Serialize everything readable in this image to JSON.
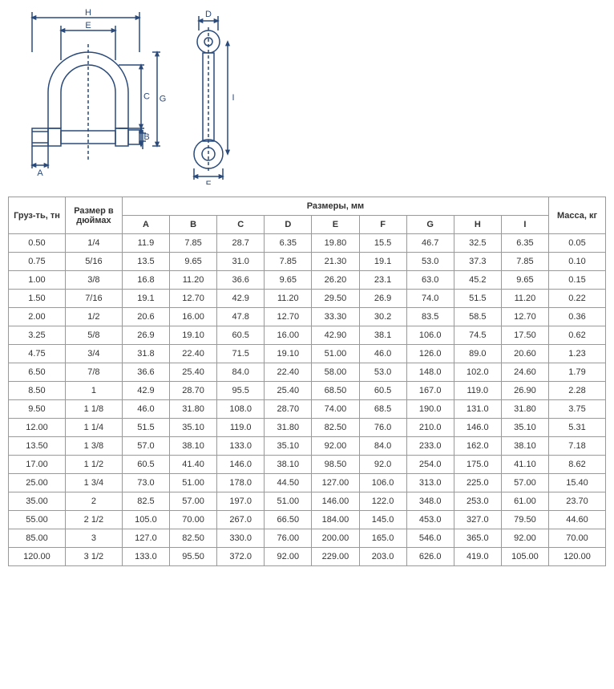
{
  "diagram": {
    "stroke_color": "#2a4a7a",
    "stroke_width": 1.5,
    "font_size": 11,
    "labels": [
      "A",
      "B",
      "C",
      "D",
      "E",
      "F",
      "G",
      "H",
      "I"
    ]
  },
  "table": {
    "header_load": "Груз-ть, тн",
    "header_inch": "Размер в дюймах",
    "header_dims_group": "Размеры, мм",
    "header_mass": "Масса, кг",
    "dim_cols": [
      "A",
      "B",
      "C",
      "D",
      "E",
      "F",
      "G",
      "H",
      "I"
    ],
    "rows": [
      {
        "load": "0.50",
        "inch": "1/4",
        "A": "11.9",
        "B": "7.85",
        "C": "28.7",
        "D": "6.35",
        "E": "19.80",
        "F": "15.5",
        "G": "46.7",
        "H": "32.5",
        "I": "6.35",
        "mass": "0.05"
      },
      {
        "load": "0.75",
        "inch": "5/16",
        "A": "13.5",
        "B": "9.65",
        "C": "31.0",
        "D": "7.85",
        "E": "21.30",
        "F": "19.1",
        "G": "53.0",
        "H": "37.3",
        "I": "7.85",
        "mass": "0.10"
      },
      {
        "load": "1.00",
        "inch": "3/8",
        "A": "16.8",
        "B": "11.20",
        "C": "36.6",
        "D": "9.65",
        "E": "26.20",
        "F": "23.1",
        "G": "63.0",
        "H": "45.2",
        "I": "9.65",
        "mass": "0.15"
      },
      {
        "load": "1.50",
        "inch": "7/16",
        "A": "19.1",
        "B": "12.70",
        "C": "42.9",
        "D": "11.20",
        "E": "29.50",
        "F": "26.9",
        "G": "74.0",
        "H": "51.5",
        "I": "11.20",
        "mass": "0.22"
      },
      {
        "load": "2.00",
        "inch": "1/2",
        "A": "20.6",
        "B": "16.00",
        "C": "47.8",
        "D": "12.70",
        "E": "33.30",
        "F": "30.2",
        "G": "83.5",
        "H": "58.5",
        "I": "12.70",
        "mass": "0.36"
      },
      {
        "load": "3.25",
        "inch": "5/8",
        "A": "26.9",
        "B": "19.10",
        "C": "60.5",
        "D": "16.00",
        "E": "42.90",
        "F": "38.1",
        "G": "106.0",
        "H": "74.5",
        "I": "17.50",
        "mass": "0.62"
      },
      {
        "load": "4.75",
        "inch": "3/4",
        "A": "31.8",
        "B": "22.40",
        "C": "71.5",
        "D": "19.10",
        "E": "51.00",
        "F": "46.0",
        "G": "126.0",
        "H": "89.0",
        "I": "20.60",
        "mass": "1.23"
      },
      {
        "load": "6.50",
        "inch": "7/8",
        "A": "36.6",
        "B": "25.40",
        "C": "84.0",
        "D": "22.40",
        "E": "58.00",
        "F": "53.0",
        "G": "148.0",
        "H": "102.0",
        "I": "24.60",
        "mass": "1.79"
      },
      {
        "load": "8.50",
        "inch": "1",
        "A": "42.9",
        "B": "28.70",
        "C": "95.5",
        "D": "25.40",
        "E": "68.50",
        "F": "60.5",
        "G": "167.0",
        "H": "119.0",
        "I": "26.90",
        "mass": "2.28"
      },
      {
        "load": "9.50",
        "inch": "1 1/8",
        "A": "46.0",
        "B": "31.80",
        "C": "108.0",
        "D": "28.70",
        "E": "74.00",
        "F": "68.5",
        "G": "190.0",
        "H": "131.0",
        "I": "31.80",
        "mass": "3.75"
      },
      {
        "load": "12.00",
        "inch": "1 1/4",
        "A": "51.5",
        "B": "35.10",
        "C": "119.0",
        "D": "31.80",
        "E": "82.50",
        "F": "76.0",
        "G": "210.0",
        "H": "146.0",
        "I": "35.10",
        "mass": "5.31"
      },
      {
        "load": "13.50",
        "inch": "1 3/8",
        "A": "57.0",
        "B": "38.10",
        "C": "133.0",
        "D": "35.10",
        "E": "92.00",
        "F": "84.0",
        "G": "233.0",
        "H": "162.0",
        "I": "38.10",
        "mass": "7.18"
      },
      {
        "load": "17.00",
        "inch": "1 1/2",
        "A": "60.5",
        "B": "41.40",
        "C": "146.0",
        "D": "38.10",
        "E": "98.50",
        "F": "92.0",
        "G": "254.0",
        "H": "175.0",
        "I": "41.10",
        "mass": "8.62"
      },
      {
        "load": "25.00",
        "inch": "1 3/4",
        "A": "73.0",
        "B": "51.00",
        "C": "178.0",
        "D": "44.50",
        "E": "127.00",
        "F": "106.0",
        "G": "313.0",
        "H": "225.0",
        "I": "57.00",
        "mass": "15.40"
      },
      {
        "load": "35.00",
        "inch": "2",
        "A": "82.5",
        "B": "57.00",
        "C": "197.0",
        "D": "51.00",
        "E": "146.00",
        "F": "122.0",
        "G": "348.0",
        "H": "253.0",
        "I": "61.00",
        "mass": "23.70"
      },
      {
        "load": "55.00",
        "inch": "2 1/2",
        "A": "105.0",
        "B": "70.00",
        "C": "267.0",
        "D": "66.50",
        "E": "184.00",
        "F": "145.0",
        "G": "453.0",
        "H": "327.0",
        "I": "79.50",
        "mass": "44.60"
      },
      {
        "load": "85.00",
        "inch": "3",
        "A": "127.0",
        "B": "82.50",
        "C": "330.0",
        "D": "76.00",
        "E": "200.00",
        "F": "165.0",
        "G": "546.0",
        "H": "365.0",
        "I": "92.00",
        "mass": "70.00"
      },
      {
        "load": "120.00",
        "inch": "3 1/2",
        "A": "133.0",
        "B": "95.50",
        "C": "372.0",
        "D": "92.00",
        "E": "229.00",
        "F": "203.0",
        "G": "626.0",
        "H": "419.0",
        "I": "105.00",
        "mass": "120.00"
      }
    ]
  }
}
